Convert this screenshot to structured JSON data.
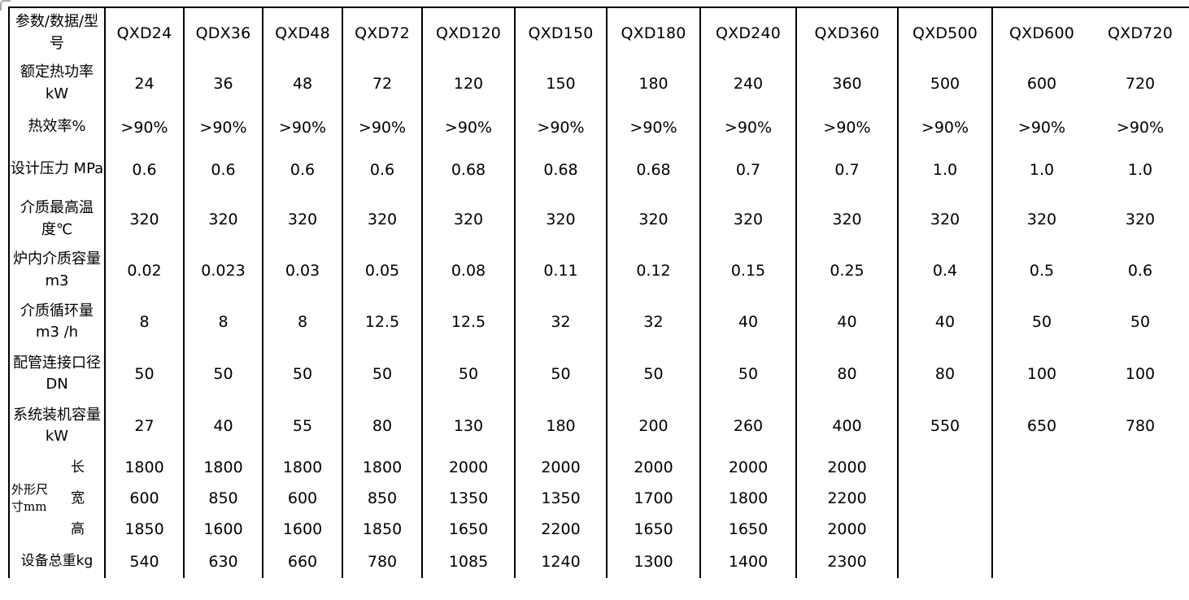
{
  "table": {
    "header": {
      "param_label": "参数/数据/型号",
      "models": [
        "QXD24",
        "QDX36",
        "QXD48",
        "QXD72",
        "QXD120",
        "QXD150",
        "QXD180",
        "QXD240",
        "QXD360",
        "QXD500",
        "QXD600",
        "QXD720"
      ]
    },
    "rows": [
      {
        "key": "rated-thermal-power",
        "cls": "r-power",
        "label": "额定热功率 kW",
        "values": [
          "24",
          "36",
          "48",
          "72",
          "120",
          "150",
          "180",
          "240",
          "360",
          "500",
          "600",
          "720"
        ]
      },
      {
        "key": "thermal-efficiency",
        "cls": "r-eff",
        "label": "热效率%",
        "values": [
          ">90%",
          ">90%",
          ">90%",
          ">90%",
          ">90%",
          ">90%",
          ">90%",
          ">90%",
          ">90%",
          ">90%",
          ">90%",
          ">90%"
        ]
      },
      {
        "key": "design-pressure",
        "cls": "r-press",
        "label": "设计压力 MPa",
        "values": [
          "0.6",
          "0.6",
          "0.6",
          "0.6",
          "0.68",
          "0.68",
          "0.68",
          "0.7",
          "0.7",
          "1.0",
          "1.0",
          "1.0"
        ]
      },
      {
        "key": "max-medium-temperature",
        "cls": "r-temp",
        "label": "介质最高温度℃",
        "values": [
          "320",
          "320",
          "320",
          "320",
          "320",
          "320",
          "320",
          "320",
          "320",
          "320",
          "320",
          "320"
        ]
      },
      {
        "key": "furnace-medium-volume",
        "cls": "r-vol",
        "label": "炉内介质容量 m3",
        "values": [
          "0.02",
          "0.023",
          "0.03",
          "0.05",
          "0.08",
          "0.11",
          "0.12",
          "0.15",
          "0.25",
          "0.4",
          "0.5",
          "0.6"
        ]
      },
      {
        "key": "medium-circulation",
        "cls": "r-circ",
        "label": "介质循环量 m3 /h",
        "values": [
          "8",
          "8",
          "8",
          "12.5",
          "12.5",
          "32",
          "32",
          "40",
          "40",
          "40",
          "50",
          "50"
        ]
      },
      {
        "key": "pipe-connection-diameter",
        "cls": "r-pipe",
        "label": "配管连接口径 DN",
        "values": [
          "50",
          "50",
          "50",
          "50",
          "50",
          "50",
          "50",
          "50",
          "80",
          "80",
          "100",
          "100"
        ]
      },
      {
        "key": "system-installed-capacity",
        "cls": "r-sys",
        "label": "系统装机容量 kW",
        "values": [
          "27",
          "40",
          "55",
          "80",
          "130",
          "180",
          "200",
          "260",
          "400",
          "550",
          "650",
          "780"
        ]
      }
    ],
    "dimensions": {
      "group_label": "外形尺寸mm",
      "sub_rows": [
        {
          "key": "length",
          "label": "长",
          "values": [
            "1800",
            "1800",
            "1800",
            "1800",
            "2000",
            "2000",
            "2000",
            "2000",
            "2000",
            "",
            "",
            ""
          ]
        },
        {
          "key": "width",
          "label": "宽",
          "values": [
            "600",
            "850",
            "600",
            "850",
            "1350",
            "1350",
            "1700",
            "1800",
            "2200",
            "",
            "",
            ""
          ]
        },
        {
          "key": "height",
          "label": "高",
          "values": [
            "1850",
            "1600",
            "1600",
            "1850",
            "1650",
            "2200",
            "1650",
            "1650",
            "2000",
            "",
            "",
            ""
          ]
        }
      ]
    },
    "weight_row": {
      "key": "total-equipment-weight",
      "label": "设备总重kg",
      "values": [
        "540",
        "630",
        "660",
        "780",
        "1085",
        "1240",
        "1300",
        "1400",
        "2300",
        "",
        "",
        ""
      ]
    },
    "style": {
      "border_color": "#000000",
      "text_color": "#000000",
      "background": "#ffffff",
      "corner_artifact_color": "#aaaaaa"
    }
  }
}
